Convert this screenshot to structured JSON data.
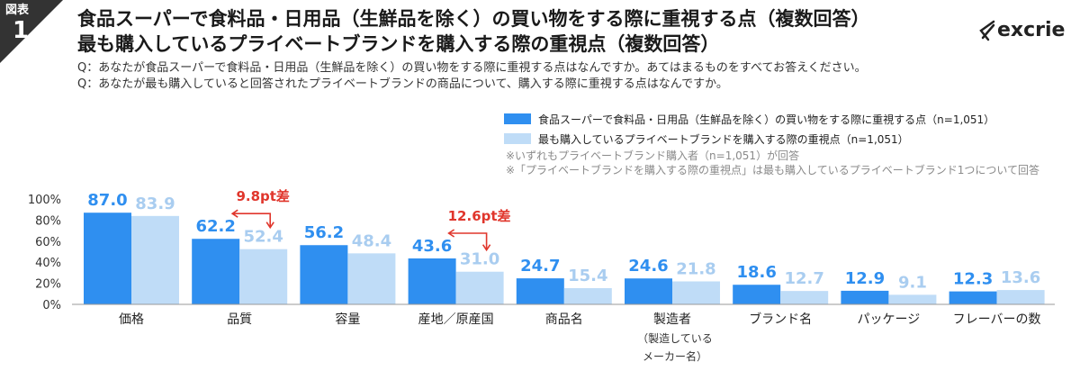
{
  "badge": {
    "label": "図表",
    "number": "1"
  },
  "title_line1": "食品スーパーで食料品・日用品（生鮮品を除く）の買い物をする際に重視する点（複数回答）",
  "title_line2": "最も購入しているプライベートブランドを購入する際の重視点（複数回答）",
  "question1": "Q：あなたが食品スーパーで食料品・日用品（生鮮品を除く）の買い物をする際に重視する点はなんですか。あてはまるものをすべてお答えください。",
  "question2": "Q：あなたが最も購入していると回答されたプライベートブランドの商品について、購入する際に重視する点はなんですか。",
  "logo": "excrie",
  "notes": [
    "※いずれもプライベートブランド購入者（n=1,051）が回答",
    "※「プライベートブランドを購入する際の重視点」は最も購入しているプライベートブランド1つについて回答"
  ],
  "category_sublabel": [
    "（製造している",
    "メーカー名）"
  ],
  "colors": {
    "series1": "#2f8ff0",
    "series2": "#bfdcf7",
    "label1": "#2f8ff0",
    "label2": "#a9cdf0",
    "annotation": "#e0362c",
    "badge": "#333333"
  },
  "chart_data": {
    "type": "bar",
    "categories": [
      "価格",
      "品質",
      "容量",
      "産地／原産国",
      "商品名",
      "製造者",
      "ブランド名",
      "パッケージ",
      "フレーバーの数"
    ],
    "series": [
      {
        "name": "食品スーパーで食料品・日用品（生鮮品を除く）の買い物をする際に重視する点（n=1,051）",
        "values": [
          87.0,
          62.2,
          56.2,
          43.6,
          24.7,
          24.6,
          18.6,
          12.9,
          12.3
        ]
      },
      {
        "name": "最も購入しているプライベートブランドを購入する際の重視点（n=1,051）",
        "values": [
          83.9,
          52.4,
          48.4,
          31.0,
          15.4,
          21.8,
          12.7,
          9.1,
          13.6
        ]
      }
    ],
    "yticks": [
      "0%",
      "20%",
      "40%",
      "60%",
      "80%",
      "100%"
    ],
    "ylim": [
      0,
      100
    ],
    "annotations": [
      {
        "category": "品質",
        "text": "9.8pt差"
      },
      {
        "category": "産地／原産国",
        "text": "12.6pt差"
      }
    ]
  }
}
